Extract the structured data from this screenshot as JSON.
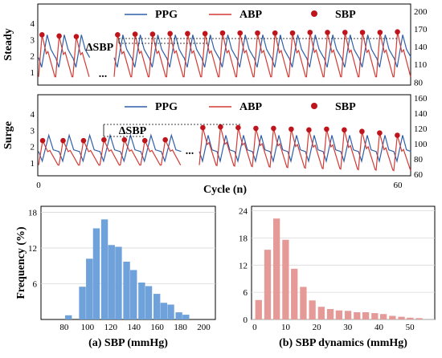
{
  "colors": {
    "ppg": "#2f5fa8",
    "abp": "#d33a34",
    "sbp": "#c0141c",
    "hist_a": "#6fa2da",
    "hist_b": "#e59a98"
  },
  "chart_data": [
    {
      "type": "line",
      "panel": "Steady",
      "ylabel": "Steady",
      "legend": [
        "PPG",
        "ABP",
        "SBP"
      ],
      "left_ticks": [
        "1",
        "2",
        "3",
        "4"
      ],
      "right_ticks": [
        "80",
        "110",
        "140",
        "170",
        "200"
      ],
      "ellipsis": "...",
      "annotation": "ΔSBP",
      "series": [
        {
          "name": "PPG"
        },
        {
          "name": "ABP"
        },
        {
          "name": "SBP",
          "segment1": [
            160,
            158,
            157
          ],
          "segment2": [
            160,
            161,
            161,
            162,
            162,
            162,
            163,
            163,
            163,
            163,
            163,
            164,
            164,
            164,
            164,
            164,
            165
          ]
        }
      ]
    },
    {
      "type": "line",
      "panel": "Surge",
      "ylabel": "Surge",
      "legend": [
        "PPG",
        "ABP",
        "SBP"
      ],
      "left_ticks": [
        "1",
        "2",
        "3",
        "4"
      ],
      "right_ticks": [
        "60",
        "80",
        "100",
        "120",
        "140",
        "160"
      ],
      "ellipsis": "...",
      "annotation": "ΔSBP",
      "xlabel": "Cycle (n)",
      "x_ticks": [
        "0",
        "60"
      ],
      "series": [
        {
          "name": "PPG"
        },
        {
          "name": "ABP"
        },
        {
          "name": "SBP",
          "segment1": [
            104,
            104,
            104,
            105,
            105,
            104,
            105
          ],
          "segment2": [
            121,
            122,
            121,
            120,
            120,
            119,
            118,
            119,
            118,
            116,
            114,
            111
          ]
        }
      ]
    },
    {
      "type": "bar",
      "ylabel": "Frequency (%)",
      "xlabel": "(a) SBP (mmHg)",
      "xlim": [
        60,
        210
      ],
      "ylim": [
        0,
        19
      ],
      "x_ticks": [
        80,
        100,
        120,
        140,
        160,
        180,
        200
      ],
      "y_ticks": [
        6,
        12,
        18
      ],
      "bin_width": 6.5,
      "bins": [
        {
          "x": 84,
          "y": 0.7
        },
        {
          "x": 96,
          "y": 5.5
        },
        {
          "x": 102,
          "y": 10.2
        },
        {
          "x": 108,
          "y": 15.3
        },
        {
          "x": 115,
          "y": 16.8
        },
        {
          "x": 121,
          "y": 12.5
        },
        {
          "x": 127,
          "y": 12.2
        },
        {
          "x": 134,
          "y": 9.7
        },
        {
          "x": 140,
          "y": 8.3
        },
        {
          "x": 147,
          "y": 6.2
        },
        {
          "x": 153,
          "y": 5.6
        },
        {
          "x": 160,
          "y": 4.3
        },
        {
          "x": 166,
          "y": 2.8
        },
        {
          "x": 172,
          "y": 2.5
        },
        {
          "x": 179,
          "y": 1.2
        },
        {
          "x": 185,
          "y": 0.8
        }
      ]
    },
    {
      "type": "bar",
      "xlabel": "(b) SBP dynamics (mmHg)",
      "xlim": [
        -1,
        58
      ],
      "ylim": [
        0,
        25
      ],
      "x_ticks": [
        0,
        10,
        20,
        30,
        40,
        50
      ],
      "y_ticks": [
        0,
        6,
        12,
        18,
        24
      ],
      "bin_width": 2.4,
      "bins": [
        {
          "x": 1.4,
          "y": 4.3
        },
        {
          "x": 4.3,
          "y": 15.4
        },
        {
          "x": 7.2,
          "y": 22.3
        },
        {
          "x": 10.1,
          "y": 17.6
        },
        {
          "x": 12.9,
          "y": 11.2
        },
        {
          "x": 15.8,
          "y": 7.2
        },
        {
          "x": 18.7,
          "y": 4.2
        },
        {
          "x": 21.6,
          "y": 2.8
        },
        {
          "x": 24.5,
          "y": 2.3
        },
        {
          "x": 27.3,
          "y": 2.0
        },
        {
          "x": 30.2,
          "y": 1.9
        },
        {
          "x": 33.1,
          "y": 1.6
        },
        {
          "x": 35.9,
          "y": 1.6
        },
        {
          "x": 38.8,
          "y": 1.4
        },
        {
          "x": 41.6,
          "y": 1.2
        },
        {
          "x": 44.5,
          "y": 0.8
        },
        {
          "x": 47.4,
          "y": 0.6
        },
        {
          "x": 50.2,
          "y": 0.4
        },
        {
          "x": 53.1,
          "y": 0.3
        }
      ]
    }
  ]
}
